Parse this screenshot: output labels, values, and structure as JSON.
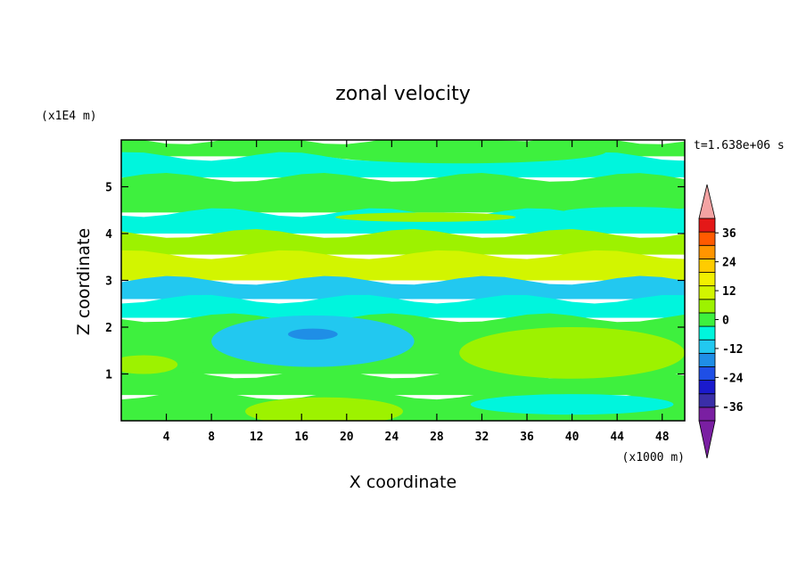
{
  "chart_data": {
    "type": "heatmap",
    "title": "zonal velocity",
    "xlabel": "X coordinate",
    "ylabel": "Z coordinate",
    "x_unit": "(x1000 m)",
    "y_unit": "(x1E4 m)",
    "time_label": "t=1.638e+06 s",
    "xlim": [
      0,
      50
    ],
    "ylim": [
      0,
      6
    ],
    "x_ticks": [
      "4",
      "8",
      "12",
      "16",
      "20",
      "24",
      "28",
      "32",
      "36",
      "40",
      "44",
      "48"
    ],
    "y_ticks": [
      "1",
      "2",
      "3",
      "4",
      "5"
    ],
    "colorbar": {
      "labels": [
        "36",
        "24",
        "12",
        "0",
        "-12",
        "-24",
        "-36"
      ],
      "levels": [
        -42,
        -36,
        -30,
        -24,
        -18,
        -12,
        -6,
        0,
        6,
        12,
        18,
        24,
        30,
        36,
        42
      ],
      "colors": [
        "#7a1fa2",
        "#3a2ea8",
        "#1a1acd",
        "#1f4fe6",
        "#1f8ee6",
        "#22c8f0",
        "#00f5dd",
        "#3ef03e",
        "#9df200",
        "#d2f500",
        "#f2f000",
        "#ffcc00",
        "#ff9500",
        "#ff5a00",
        "#e41818"
      ],
      "under_color": "#7a1fa2",
      "over_color": "#f4a3a3"
    },
    "bands": [
      {
        "z": [
          5.65,
          6.0
        ],
        "value": 2
      },
      {
        "z": [
          5.2,
          5.65
        ],
        "value": -2
      },
      {
        "z": [
          4.45,
          5.2
        ],
        "value": 3
      },
      {
        "z": [
          4.0,
          4.45
        ],
        "value": -2
      },
      {
        "z": [
          3.55,
          4.0
        ],
        "value": 8
      },
      {
        "z": [
          3.0,
          3.55
        ],
        "value": 13
      },
      {
        "z": [
          2.6,
          3.0
        ],
        "value": -8
      },
      {
        "z": [
          2.2,
          2.6
        ],
        "value": -2
      },
      {
        "z": [
          1.0,
          2.2
        ],
        "value": 3
      },
      {
        "z": [
          0.55,
          1.0
        ],
        "value": 4
      },
      {
        "z": [
          0.0,
          0.55
        ],
        "value": 2
      }
    ],
    "features": [
      {
        "x": 17,
        "z": 1.7,
        "rx": 9,
        "rz": 0.55,
        "value": -9
      },
      {
        "x": 17,
        "z": 1.85,
        "rx": 2.2,
        "rz": 0.12,
        "value": -14
      },
      {
        "x": 40,
        "z": 1.45,
        "rx": 10,
        "rz": 0.55,
        "value": 9
      },
      {
        "x": 18,
        "z": 0.2,
        "rx": 7,
        "rz": 0.3,
        "value": 11
      },
      {
        "x": 40,
        "z": 0.35,
        "rx": 9,
        "rz": 0.22,
        "value": -3
      },
      {
        "x": 27,
        "z": 4.35,
        "rx": 8,
        "rz": 0.1,
        "value": 8
      },
      {
        "x": 45,
        "z": 4.45,
        "rx": 6,
        "rz": 0.12,
        "value": -3
      },
      {
        "x": 30,
        "z": 5.75,
        "rx": 13,
        "rz": 0.25,
        "value": 3
      },
      {
        "x": 2,
        "z": 1.2,
        "rx": 3,
        "rz": 0.2,
        "value": 10
      }
    ]
  }
}
